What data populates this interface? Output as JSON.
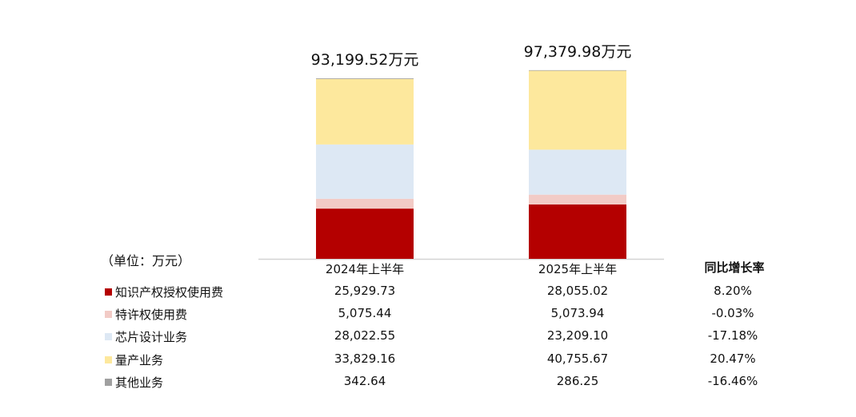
{
  "chart_data": {
    "type": "bar",
    "stacked": true,
    "unit_label": "（单位：万元）",
    "categories": [
      "2024年上半年",
      "2025年上半年"
    ],
    "totals": [
      "93,199.52万元",
      "97,379.98万元"
    ],
    "total_values": [
      93199.52,
      97379.98
    ],
    "ylim": [
      0,
      100000
    ],
    "growth_header": "同比增长率",
    "series": [
      {
        "name": "知识产权授权使用费",
        "color": "#B40000",
        "values": [
          25929.73,
          28055.02
        ],
        "labels": [
          "25,929.73",
          "28,055.02"
        ],
        "growth": "8.20%"
      },
      {
        "name": "特许权使用费",
        "color": "#F2CBC6",
        "values": [
          5075.44,
          5073.94
        ],
        "labels": [
          "5,075.44",
          "5,073.94"
        ],
        "growth": "-0.03%"
      },
      {
        "name": "芯片设计业务",
        "color": "#DDE8F4",
        "values": [
          28022.55,
          23209.1
        ],
        "labels": [
          "28,022.55",
          "23,209.10"
        ],
        "growth": "-17.18%"
      },
      {
        "name": "量产业务",
        "color": "#FDE89D",
        "values": [
          33829.16,
          40755.67
        ],
        "labels": [
          "33,829.16",
          "40,755.67"
        ],
        "growth": "20.47%"
      },
      {
        "name": "其他业务",
        "color": "#A0A0A0",
        "values": [
          342.64,
          286.25
        ],
        "labels": [
          "342.64",
          "286.25"
        ],
        "growth": "-16.46%"
      }
    ]
  }
}
